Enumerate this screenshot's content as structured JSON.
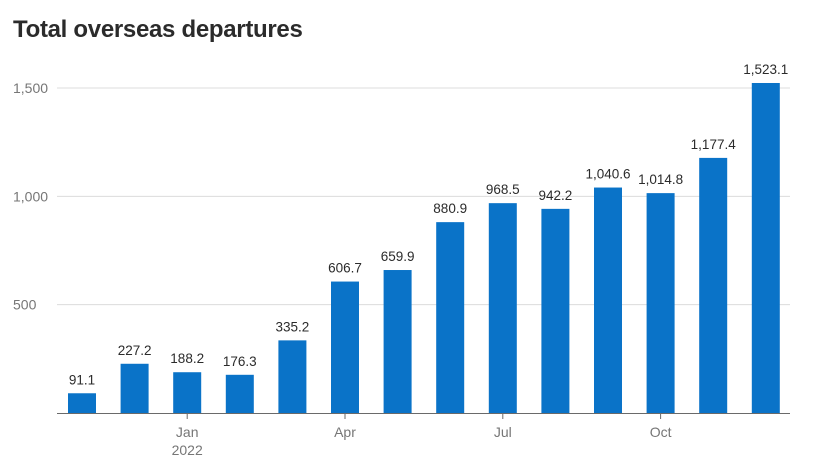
{
  "chart_data": {
    "type": "bar",
    "title": "Total overseas departures",
    "xlabel": "",
    "ylabel": "",
    "ylim": [
      0,
      1600
    ],
    "yticks": [
      500,
      1000,
      1500
    ],
    "ytick_labels": [
      "500",
      "1,000",
      "1,500"
    ],
    "grid": true,
    "color": "#0a73c8",
    "values": [
      91.1,
      227.2,
      188.2,
      176.3,
      335.2,
      606.7,
      659.9,
      880.9,
      968.5,
      942.2,
      1040.6,
      1014.8,
      1177.4,
      1523.1
    ],
    "value_labels": [
      "91.1",
      "227.2",
      "188.2",
      "176.3",
      "335.2",
      "606.7",
      "659.9",
      "880.9",
      "968.5",
      "942.2",
      "1,040.6",
      "1,014.8",
      "1,177.4",
      "1,523.1"
    ],
    "x_ticks": [
      {
        "index": 2,
        "label": "Jan",
        "sublabel": "2022"
      },
      {
        "index": 5,
        "label": "Apr",
        "sublabel": ""
      },
      {
        "index": 8,
        "label": "Jul",
        "sublabel": ""
      },
      {
        "index": 11,
        "label": "Oct",
        "sublabel": ""
      }
    ]
  }
}
